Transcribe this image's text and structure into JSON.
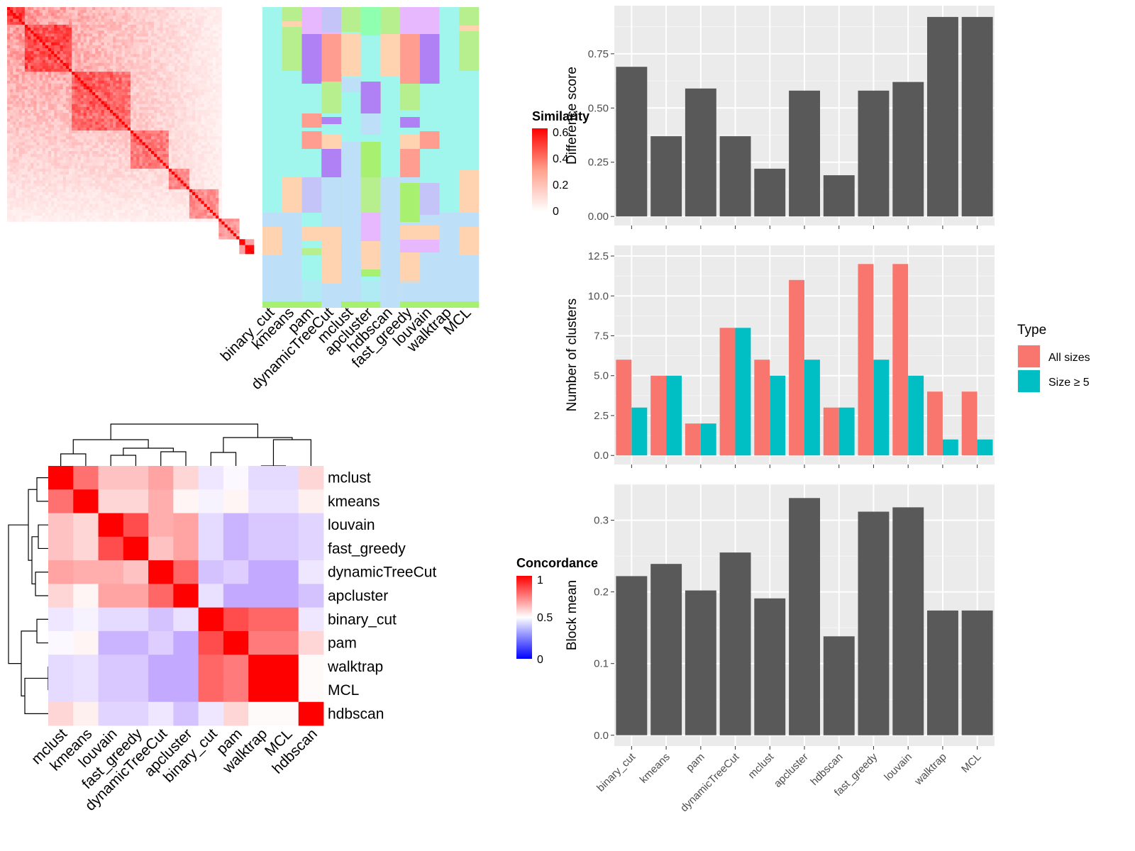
{
  "top_heatmap": {
    "legend_title": "Similarity",
    "legend_ticks": [
      "0.6",
      "0.4",
      "0.2",
      "0"
    ],
    "method_labels": [
      "binary_cut",
      "kmeans",
      "pam",
      "dynamicTreeCut",
      "mclust",
      "apcluster",
      "hdbscan",
      "fast_greedy",
      "louvain",
      "walktrap",
      "MCL"
    ]
  },
  "concordance": {
    "legend_title": "Concordance",
    "legend_ticks": [
      "1",
      "0.5",
      "0"
    ],
    "colors": {
      "high": "#ff0000",
      "mid": "#ffffff",
      "low": "#0000ff"
    }
  },
  "chart_data": [
    {
      "type": "heatmap",
      "title": "Concordance",
      "rows": [
        "mclust",
        "kmeans",
        "louvain",
        "fast_greedy",
        "dynamicTreeCut",
        "apcluster",
        "binary_cut",
        "pam",
        "walktrap",
        "MCL",
        "hdbscan"
      ],
      "columns": [
        "mclust",
        "kmeans",
        "louvain",
        "fast_greedy",
        "dynamicTreeCut",
        "apcluster",
        "binary_cut",
        "pam",
        "walktrap",
        "MCL",
        "hdbscan"
      ],
      "values": [
        [
          1.0,
          0.78,
          0.62,
          0.62,
          0.68,
          0.58,
          0.42,
          0.48,
          0.38,
          0.38,
          0.58
        ],
        [
          0.78,
          1.0,
          0.58,
          0.58,
          0.66,
          0.52,
          0.46,
          0.52,
          0.4,
          0.4,
          0.53
        ],
        [
          0.62,
          0.58,
          1.0,
          0.85,
          0.66,
          0.68,
          0.38,
          0.25,
          0.32,
          0.32,
          0.36
        ],
        [
          0.62,
          0.58,
          0.85,
          1.0,
          0.62,
          0.68,
          0.38,
          0.25,
          0.32,
          0.32,
          0.36
        ],
        [
          0.68,
          0.66,
          0.66,
          0.62,
          1.0,
          0.8,
          0.3,
          0.34,
          0.22,
          0.22,
          0.42
        ],
        [
          0.58,
          0.52,
          0.68,
          0.68,
          0.8,
          1.0,
          0.4,
          0.22,
          0.22,
          0.22,
          0.3
        ],
        [
          0.42,
          0.46,
          0.38,
          0.38,
          0.3,
          0.4,
          1.0,
          0.85,
          0.8,
          0.8,
          0.42
        ],
        [
          0.48,
          0.52,
          0.25,
          0.25,
          0.34,
          0.22,
          0.85,
          1.0,
          0.76,
          0.76,
          0.58
        ],
        [
          0.38,
          0.4,
          0.32,
          0.32,
          0.22,
          0.22,
          0.8,
          0.76,
          1.0,
          1.0,
          0.51
        ],
        [
          0.38,
          0.4,
          0.32,
          0.32,
          0.22,
          0.22,
          0.8,
          0.76,
          1.0,
          1.0,
          0.51
        ],
        [
          0.58,
          0.53,
          0.36,
          0.36,
          0.42,
          0.3,
          0.42,
          0.58,
          0.51,
          0.51,
          1.0
        ]
      ],
      "range": [
        0,
        1
      ]
    },
    {
      "type": "bar",
      "categories": [
        "binary_cut",
        "kmeans",
        "pam",
        "dynamicTreeCut",
        "mclust",
        "apcluster",
        "hdbscan",
        "fast_greedy",
        "louvain",
        "walktrap",
        "MCL"
      ],
      "values": [
        0.69,
        0.37,
        0.59,
        0.37,
        0.22,
        0.58,
        0.19,
        0.58,
        0.62,
        0.92,
        0.92
      ],
      "ylabel": "Difference score",
      "ylim": [
        0,
        0.93
      ],
      "yticks": [
        "0.00",
        "0.25",
        "0.50",
        "0.75"
      ],
      "color": "#595959"
    },
    {
      "type": "bar",
      "categories": [
        "binary_cut",
        "kmeans",
        "pam",
        "dynamicTreeCut",
        "mclust",
        "apcluster",
        "hdbscan",
        "fast_greedy",
        "louvain",
        "walktrap",
        "MCL"
      ],
      "series": [
        {
          "name": "All sizes",
          "values": [
            6,
            5,
            2,
            8,
            6,
            11,
            3,
            12,
            12,
            4,
            4
          ],
          "color": "#f8766d"
        },
        {
          "name": "Size ≥ 5",
          "values": [
            3,
            5,
            2,
            8,
            5,
            6,
            3,
            6,
            5,
            1,
            1
          ],
          "color": "#00bfc4"
        }
      ],
      "ylabel": "Number of clusters",
      "ylim": [
        0,
        12.6
      ],
      "yticks": [
        "0.0",
        "2.5",
        "5.0",
        "7.5",
        "10.0",
        "12.5"
      ],
      "legend_title": "Type",
      "legend_position": "right"
    },
    {
      "type": "bar",
      "categories": [
        "binary_cut",
        "kmeans",
        "pam",
        "dynamicTreeCut",
        "mclust",
        "apcluster",
        "hdbscan",
        "fast_greedy",
        "louvain",
        "walktrap",
        "MCL"
      ],
      "values": [
        0.222,
        0.239,
        0.202,
        0.255,
        0.191,
        0.331,
        0.138,
        0.312,
        0.318,
        0.174,
        0.174
      ],
      "ylabel": "Block mean",
      "ylim": [
        0,
        0.335
      ],
      "yticks": [
        "0.0",
        "0.1",
        "0.2",
        "0.3"
      ],
      "color": "#595959"
    }
  ]
}
